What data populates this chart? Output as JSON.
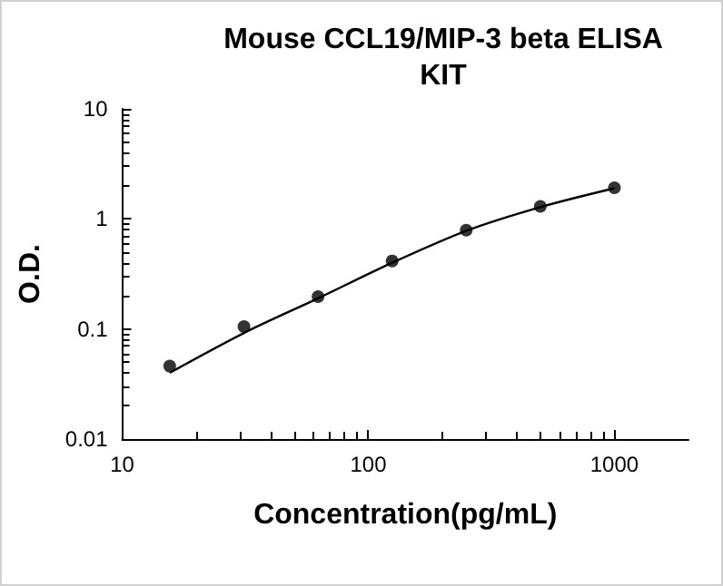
{
  "chart_data": {
    "type": "scatter",
    "title": "Mouse CCL19/MIP-3 beta ELISA\nKIT",
    "xlabel": "Concentration(pg/mL)",
    "ylabel": "O.D.",
    "log": "xy",
    "grid": false,
    "xlim": [
      10,
      2000
    ],
    "xticks": [
      10,
      100,
      1000
    ],
    "ylim": [
      0.01,
      10
    ],
    "yticks": [
      0.01,
      0.1,
      1,
      10
    ],
    "series": [
      {
        "marker": "circle",
        "color": "#000000",
        "x": [
          15.6,
          31.25,
          62.5,
          125,
          250,
          500,
          1000
        ],
        "values": [
          0.046,
          0.105,
          0.197,
          0.415,
          0.79,
          1.3,
          1.92
        ]
      },
      {
        "type": "line",
        "marker": "none",
        "line_style": "solid",
        "color": "#000000",
        "x": [
          15.6,
          31.25,
          62.5,
          125,
          250,
          500,
          1000
        ],
        "values": [
          0.04,
          0.092,
          0.19,
          0.4,
          0.78,
          1.28,
          1.9
        ]
      }
    ]
  }
}
